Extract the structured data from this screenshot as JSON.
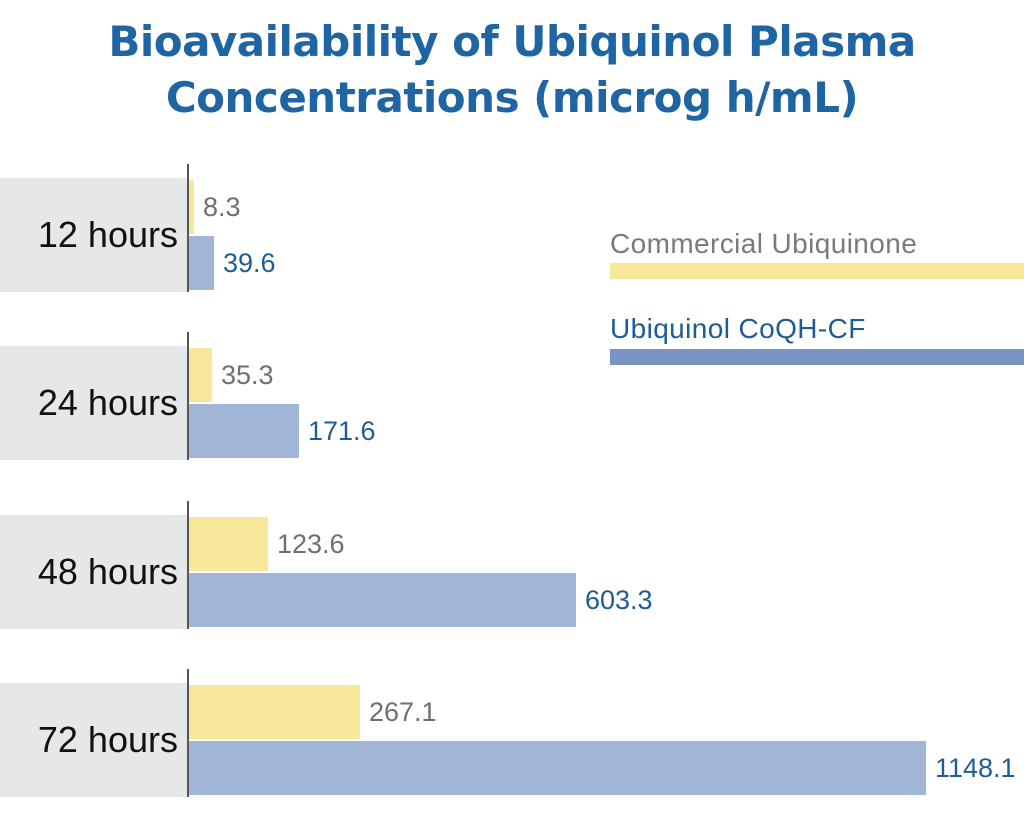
{
  "chart_data": {
    "type": "bar",
    "orientation": "horizontal",
    "title": "Bioavailability of Ubiquinol Plasma Concentrations (microg h/mL)",
    "title_lines": [
      "Bioavailability of Ubiquinol Plasma",
      "Concentrations (microg h/mL)"
    ],
    "categories": [
      "12 hours",
      "24 hours",
      "48 hours",
      "72 hours"
    ],
    "series": [
      {
        "name": "Commercial Ubiquinone",
        "values": [
          8.3,
          35.3,
          123.6,
          267.1
        ],
        "labels": [
          "8.3",
          "35.3",
          "123.6",
          "267.1"
        ],
        "color": "#f7e79b",
        "label_color": "#6f6f6f"
      },
      {
        "name": "Ubiquinol CoQH-CF",
        "values": [
          39.6,
          171.6,
          603.3,
          1148.1
        ],
        "labels": [
          "39.6",
          "171.6",
          "603.3",
          "1148.1"
        ],
        "color": "#a1b5d6",
        "label_color": "#1f5c94"
      }
    ],
    "legend_placement": "right",
    "grid": false,
    "xlim": [
      0,
      1148.1
    ]
  }
}
